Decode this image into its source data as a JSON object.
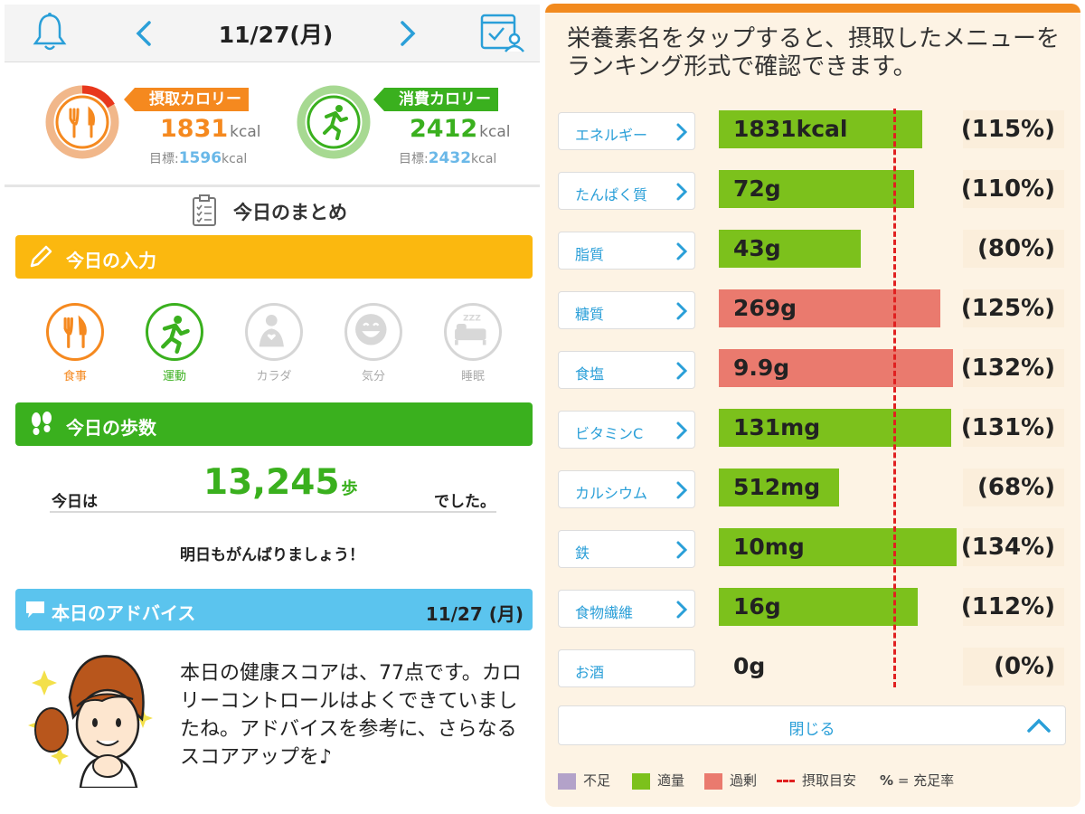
{
  "left": {
    "header": {
      "date": "11/27(月)"
    },
    "intake": {
      "label": "摂取カロリー",
      "value": "1831",
      "unit": "kcal",
      "goal_label": "目標:",
      "goal_value": "1596",
      "goal_unit": "kcal",
      "color": "#f5891f"
    },
    "burn": {
      "label": "消費カロリー",
      "value": "2412",
      "unit": "kcal",
      "goal_label": "目標:",
      "goal_value": "2432",
      "goal_unit": "kcal",
      "color": "#3ab01e"
    },
    "summary_title": "今日のまとめ",
    "input_section": {
      "title": "今日の入力",
      "color": "#fbb80f",
      "items": [
        {
          "label": "食事",
          "icon": "fork-knife-icon",
          "active": true,
          "color": "#f5891f"
        },
        {
          "label": "運動",
          "icon": "runner-icon",
          "active": true,
          "color": "#3ab01e"
        },
        {
          "label": "カラダ",
          "icon": "body-icon",
          "active": false
        },
        {
          "label": "気分",
          "icon": "smile-icon",
          "active": false
        },
        {
          "label": "睡眠",
          "icon": "sleep-icon",
          "active": false
        }
      ]
    },
    "steps_section": {
      "title": "今日の歩数",
      "color": "#3ab01e",
      "prefix": "今日は",
      "value": "13,245",
      "unit": "歩",
      "suffix": "でした。",
      "cheer": "明日もがんばりましょう！"
    },
    "advice_section": {
      "title": "本日のアドバイス",
      "date": "11/27 (月)",
      "color": "#5bc4ee",
      "text": "本日の健康スコアは、77点です。カロリーコントロールはよくできていましたね。アドバイスを参考に、さらなるスコアアップを♪"
    }
  },
  "right": {
    "intro": "栄養素名をタップすると、摂取したメニューをランキング形式で確認できます。",
    "nutrients": [
      {
        "name": "エネルギー",
        "value": "1831kcal",
        "pct": "(115%)",
        "ratio": 1.15,
        "status": "ok"
      },
      {
        "name": "たんぱく質",
        "value": "72g",
        "pct": "(110%)",
        "ratio": 1.1,
        "status": "ok"
      },
      {
        "name": "脂質",
        "value": "43g",
        "pct": "(80%)",
        "ratio": 0.8,
        "status": "ok"
      },
      {
        "name": "糖質",
        "value": "269g",
        "pct": "(125%)",
        "ratio": 1.25,
        "status": "over"
      },
      {
        "name": "食塩",
        "value": "9.9g",
        "pct": "(132%)",
        "ratio": 1.32,
        "status": "over"
      },
      {
        "name": "ビタミンC",
        "value": "131mg",
        "pct": "(131%)",
        "ratio": 1.31,
        "status": "ok"
      },
      {
        "name": "カルシウム",
        "value": "512mg",
        "pct": "(68%)",
        "ratio": 0.68,
        "status": "ok"
      },
      {
        "name": "鉄",
        "value": "10mg",
        "pct": "(134%)",
        "ratio": 1.34,
        "status": "ok"
      },
      {
        "name": "食物繊維",
        "value": "16g",
        "pct": "(112%)",
        "ratio": 1.12,
        "status": "ok"
      },
      {
        "name": "お酒",
        "value": "0g",
        "pct": "(0%)",
        "ratio": 0,
        "status": "none"
      }
    ],
    "colors": {
      "short": "#b3a2c9",
      "ok": "#7cc11c",
      "over": "#ea7a6e",
      "guide": "#e02020"
    },
    "close_label": "閉じる",
    "legend": {
      "short": "不足",
      "ok": "適量",
      "over": "過剰",
      "guide": "摂取目安",
      "pct_symbol": "%",
      "pct_text": "= 充足率"
    }
  }
}
